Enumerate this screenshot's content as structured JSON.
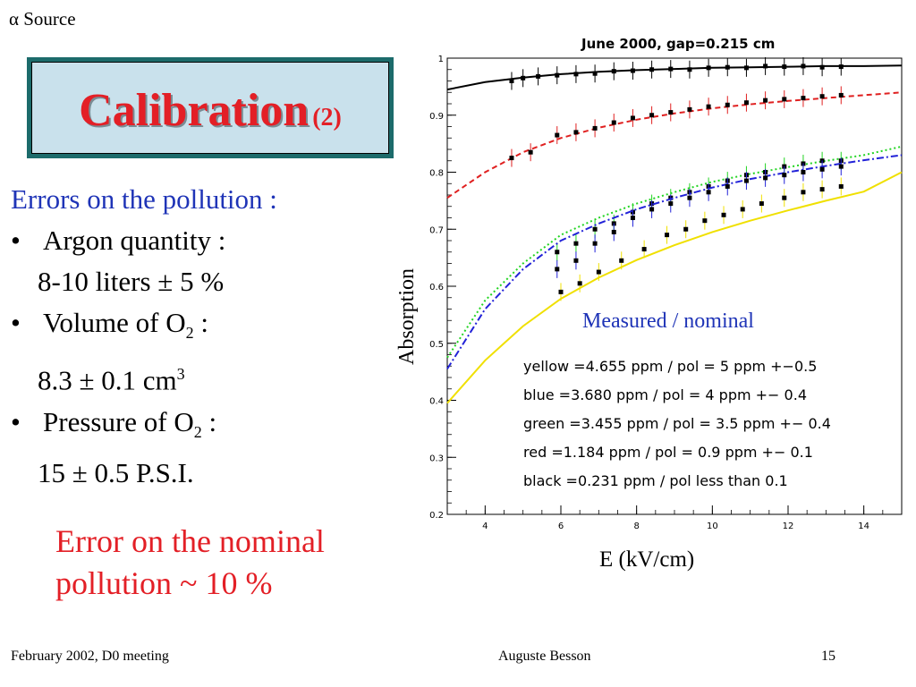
{
  "corner_note": "α Source",
  "slide_title": {
    "main": "Calibration",
    "suffix": "(2)"
  },
  "left_text": {
    "lead": "Errors on the pollution :",
    "items": [
      {
        "label": "Argon quantity  :",
        "value": "8-10 liters   ± 5 %"
      },
      {
        "label_prefix": "Volume of O",
        "label_sub": "2",
        "label_suffix": " :",
        "value_prefix": "8.3 ± 0.1 cm",
        "value_sup": "3"
      },
      {
        "label_prefix": "Pressure of O",
        "label_sub": "2",
        "label_suffix": " :",
        "value": "15 ± 0.5 P.S.I."
      }
    ]
  },
  "error_note": [
    "Error on the nominal",
    "pollution ~ 10 %"
  ],
  "footer": {
    "left": "February 2002, D0 meeting",
    "center": "Auguste Besson",
    "page": "15"
  },
  "chart_data": {
    "type": "scatter",
    "title": "June 2000,  gap=0.215 cm",
    "xlabel": "E (kV/cm)",
    "ylabel": "Absorption",
    "annotation": "Measured / nominal",
    "xlim": [
      3,
      15
    ],
    "ylim": [
      0.2,
      1.0
    ],
    "xticks": [
      4,
      6,
      8,
      10,
      12,
      14
    ],
    "yticks": [
      0.2,
      0.3,
      0.4,
      0.5,
      0.6,
      0.7,
      0.8,
      0.9,
      1.0
    ],
    "ytick_labels": [
      "0.2",
      "0.3",
      "0.4",
      "0.5",
      "0.6",
      "0.7",
      "0.8",
      "0.9",
      "1"
    ],
    "legend": [
      "yellow =4.655 ppm / pol = 5 ppm +−0.5",
      "blue =3.680 ppm / pol = 4 ppm +− 0.4",
      "green =3.455 ppm / pol = 3.5 ppm +− 0.4",
      "red =1.184 ppm / pol = 0.9 ppm +− 0.1",
      "black =0.231 ppm / pol less than 0.1"
    ],
    "series": [
      {
        "color": "#000000",
        "curve_style": "solid",
        "curve_x": [
          3,
          4,
          5,
          6,
          7,
          8,
          9,
          10,
          11,
          12,
          13,
          14,
          15
        ],
        "curve_y": [
          0.945,
          0.958,
          0.966,
          0.972,
          0.976,
          0.979,
          0.981,
          0.983,
          0.984,
          0.985,
          0.986,
          0.986,
          0.987
        ],
        "points_x": [
          4.7,
          5.0,
          5.4,
          5.9,
          6.4,
          6.9,
          7.4,
          7.9,
          8.4,
          8.9,
          9.4,
          9.9,
          10.4,
          10.9,
          11.4,
          11.9,
          12.4,
          12.9,
          13.4
        ],
        "points_y": [
          0.96,
          0.965,
          0.968,
          0.97,
          0.972,
          0.973,
          0.977,
          0.978,
          0.98,
          0.981,
          0.98,
          0.983,
          0.984,
          0.983,
          0.986,
          0.985,
          0.986,
          0.984,
          0.985
        ]
      },
      {
        "color": "#e02020",
        "curve_style": "dashed",
        "curve_x": [
          3,
          4,
          5,
          6,
          7,
          8,
          9,
          10,
          11,
          12,
          13,
          14,
          15
        ],
        "curve_y": [
          0.755,
          0.8,
          0.835,
          0.86,
          0.878,
          0.892,
          0.903,
          0.912,
          0.919,
          0.925,
          0.93,
          0.935,
          0.94
        ],
        "points_x": [
          4.7,
          5.2,
          5.9,
          6.4,
          6.9,
          7.4,
          7.9,
          8.4,
          8.9,
          9.4,
          9.9,
          10.4,
          10.9,
          11.4,
          11.9,
          12.4,
          12.9,
          13.4
        ],
        "points_y": [
          0.825,
          0.835,
          0.865,
          0.87,
          0.877,
          0.887,
          0.895,
          0.9,
          0.905,
          0.91,
          0.915,
          0.918,
          0.922,
          0.926,
          0.928,
          0.93,
          0.933,
          0.935
        ]
      },
      {
        "color": "#22d422",
        "curve_style": "dotted",
        "curve_x": [
          3,
          4,
          5,
          6,
          7,
          8,
          9,
          10,
          11,
          12,
          13,
          14,
          15
        ],
        "curve_y": [
          0.475,
          0.575,
          0.64,
          0.69,
          0.72,
          0.745,
          0.765,
          0.783,
          0.797,
          0.809,
          0.82,
          0.83,
          0.845
        ],
        "points_x": [
          5.9,
          6.4,
          6.9,
          7.4,
          7.9,
          8.4,
          8.9,
          9.4,
          9.9,
          10.4,
          10.9,
          11.4,
          11.9,
          12.4,
          12.9,
          13.4
        ],
        "points_y": [
          0.66,
          0.675,
          0.7,
          0.71,
          0.73,
          0.745,
          0.755,
          0.765,
          0.775,
          0.785,
          0.795,
          0.8,
          0.81,
          0.815,
          0.82,
          0.82
        ]
      },
      {
        "color": "#2222d8",
        "curve_style": "dashdot",
        "curve_x": [
          3,
          4,
          5,
          6,
          7,
          8,
          9,
          10,
          11,
          12,
          13,
          14,
          15
        ],
        "curve_y": [
          0.455,
          0.56,
          0.63,
          0.68,
          0.71,
          0.735,
          0.755,
          0.773,
          0.788,
          0.8,
          0.811,
          0.821,
          0.83
        ],
        "points_x": [
          5.9,
          6.4,
          6.9,
          7.4,
          7.9,
          8.4,
          8.9,
          9.4,
          9.9,
          10.4,
          10.9,
          11.4,
          11.9,
          12.4,
          12.9,
          13.4
        ],
        "points_y": [
          0.63,
          0.645,
          0.675,
          0.695,
          0.72,
          0.735,
          0.745,
          0.755,
          0.765,
          0.775,
          0.785,
          0.79,
          0.795,
          0.8,
          0.805,
          0.81
        ]
      },
      {
        "color": "#f0e000",
        "curve_style": "solid",
        "curve_x": [
          3,
          4,
          5,
          6,
          7,
          8,
          9,
          10,
          11,
          12,
          13,
          14,
          15
        ],
        "curve_y": [
          0.395,
          0.47,
          0.53,
          0.578,
          0.615,
          0.646,
          0.672,
          0.695,
          0.715,
          0.733,
          0.75,
          0.766,
          0.8
        ],
        "points_x": [
          6.0,
          6.5,
          7.0,
          7.6,
          8.2,
          8.8,
          9.3,
          9.8,
          10.3,
          10.8,
          11.3,
          11.9,
          12.4,
          12.9,
          13.4
        ],
        "points_y": [
          0.59,
          0.605,
          0.625,
          0.645,
          0.665,
          0.69,
          0.7,
          0.715,
          0.725,
          0.735,
          0.745,
          0.755,
          0.765,
          0.77,
          0.775
        ]
      }
    ]
  }
}
